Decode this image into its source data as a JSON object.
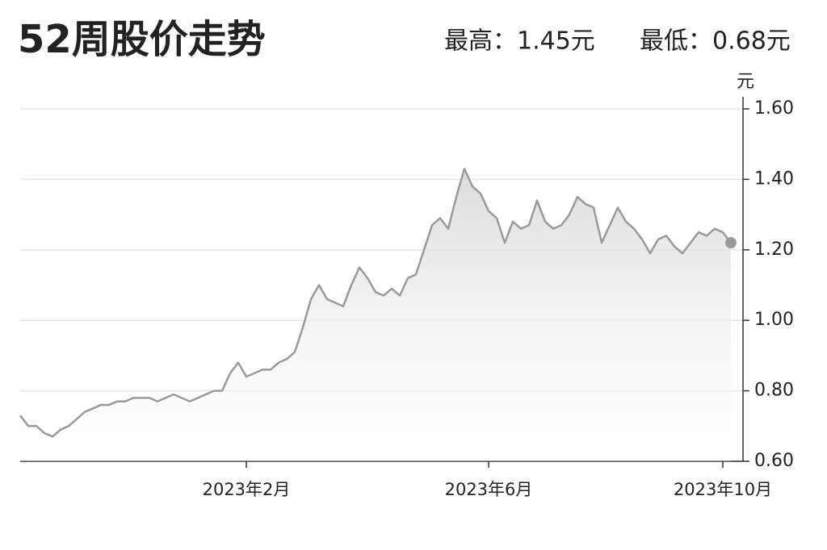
{
  "chart_data": {
    "type": "line",
    "title": "52周股价走势",
    "annotations": [
      "最高：1.45元",
      "最低：0.68元"
    ],
    "y_axis_label": "元",
    "categories": [
      null,
      null,
      null,
      null,
      null,
      null,
      null,
      null,
      null,
      null,
      null,
      null,
      null,
      null,
      null,
      null,
      null,
      null,
      null,
      null,
      null,
      null,
      null,
      null,
      null,
      null,
      null,
      null,
      "2023年2月",
      null,
      null,
      null,
      null,
      null,
      null,
      null,
      null,
      null,
      null,
      null,
      null,
      null,
      null,
      null,
      null,
      null,
      null,
      null,
      null,
      null,
      null,
      null,
      null,
      null,
      null,
      null,
      null,
      null,
      "2023年6月",
      null,
      null,
      null,
      null,
      null,
      null,
      null,
      null,
      null,
      null,
      null,
      null,
      null,
      null,
      null,
      null,
      null,
      null,
      null,
      null,
      null,
      null,
      null,
      null,
      null,
      null,
      null,
      null,
      "2023年10月",
      null
    ],
    "series": [
      {
        "color": "#9a9a9a",
        "values": [
          0.73,
          0.7,
          0.7,
          0.68,
          0.67,
          0.69,
          0.7,
          0.72,
          0.74,
          0.75,
          0.76,
          0.76,
          0.77,
          0.77,
          0.78,
          0.78,
          0.78,
          0.77,
          0.78,
          0.79,
          0.78,
          0.77,
          0.78,
          0.79,
          0.8,
          0.8,
          0.85,
          0.88,
          0.84,
          0.85,
          0.86,
          0.86,
          0.88,
          0.89,
          0.91,
          0.98,
          1.06,
          1.1,
          1.06,
          1.05,
          1.04,
          1.1,
          1.15,
          1.12,
          1.08,
          1.07,
          1.09,
          1.07,
          1.12,
          1.13,
          1.2,
          1.27,
          1.29,
          1.26,
          1.35,
          1.43,
          1.38,
          1.36,
          1.31,
          1.29,
          1.22,
          1.28,
          1.26,
          1.27,
          1.34,
          1.28,
          1.26,
          1.27,
          1.3,
          1.35,
          1.33,
          1.32,
          1.22,
          1.27,
          1.32,
          1.28,
          1.26,
          1.23,
          1.19,
          1.23,
          1.24,
          1.21,
          1.19,
          1.22,
          1.25,
          1.24,
          1.26,
          1.25,
          1.22
        ]
      }
    ],
    "ylim": [
      0.6,
      1.6
    ],
    "yticks": [
      {
        "value": 0.6,
        "label": "0.60"
      },
      {
        "value": 0.8,
        "label": "0.80"
      },
      {
        "value": 1.0,
        "label": "1.00"
      },
      {
        "value": 1.2,
        "label": "1.20"
      },
      {
        "value": 1.4,
        "label": "1.40"
      },
      {
        "value": 1.6,
        "label": "1.60"
      }
    ],
    "grid": true
  }
}
